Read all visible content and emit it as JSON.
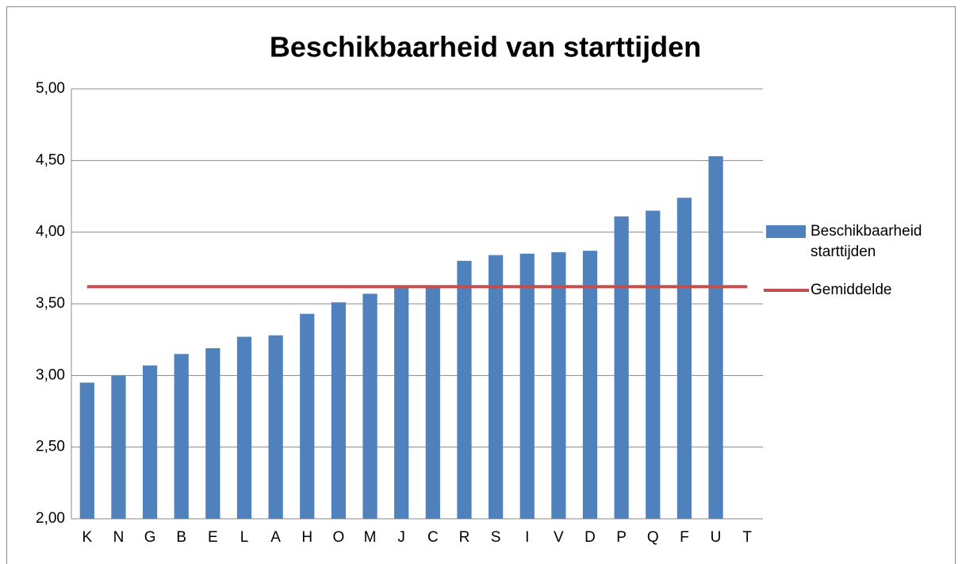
{
  "chart_data": {
    "type": "bar",
    "title": "Beschikbaarheid van starttijden",
    "categories": [
      "K",
      "N",
      "G",
      "B",
      "E",
      "L",
      "A",
      "H",
      "O",
      "M",
      "J",
      "C",
      "R",
      "S",
      "I",
      "V",
      "D",
      "P",
      "Q",
      "F",
      "U",
      "T"
    ],
    "series": [
      {
        "name": "Beschikbaarheid starttijden",
        "type": "bar",
        "color": "#4f81bd",
        "values": [
          2.95,
          3.0,
          3.07,
          3.15,
          3.19,
          3.27,
          3.28,
          3.43,
          3.51,
          3.57,
          3.62,
          3.62,
          3.8,
          3.84,
          3.85,
          3.86,
          3.87,
          4.11,
          4.15,
          4.24,
          4.53,
          null
        ]
      },
      {
        "name": "Gemiddelde",
        "type": "line",
        "color": "#c0504d",
        "values": [
          3.62,
          3.62,
          3.62,
          3.62,
          3.62,
          3.62,
          3.62,
          3.62,
          3.62,
          3.62,
          3.62,
          3.62,
          3.62,
          3.62,
          3.62,
          3.62,
          3.62,
          3.62,
          3.62,
          3.62,
          3.62,
          3.62
        ]
      }
    ],
    "ylim": [
      2,
      5
    ],
    "yticks": [
      {
        "value": 2,
        "label": "2,00"
      },
      {
        "value": 2.5,
        "label": "2,50"
      },
      {
        "value": 3,
        "label": "3,00"
      },
      {
        "value": 3.5,
        "label": "3,50"
      },
      {
        "value": 4,
        "label": "4,00"
      },
      {
        "value": 4.5,
        "label": "4,50"
      },
      {
        "value": 5,
        "label": "5,00"
      }
    ],
    "grid": true,
    "legend": "right"
  }
}
